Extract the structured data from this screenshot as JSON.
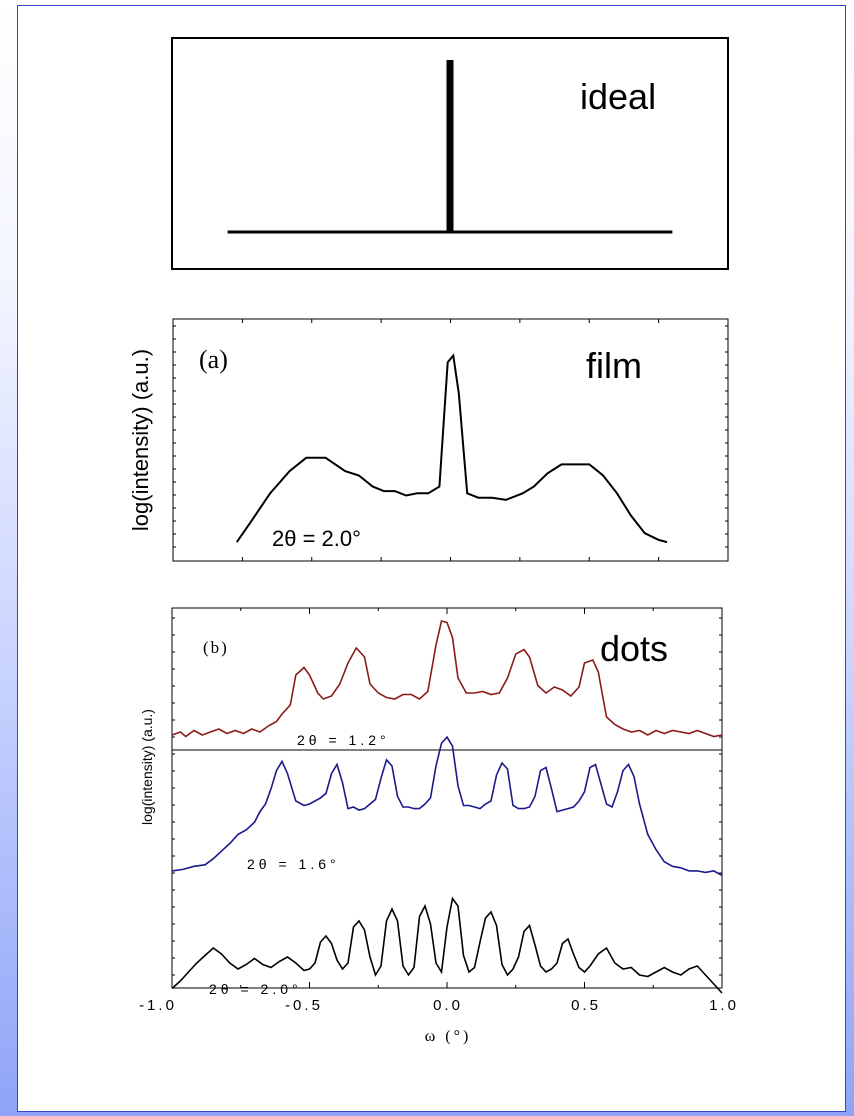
{
  "chart_data": [
    {
      "type": "line",
      "panel_label": "",
      "annotation": "ideal",
      "xlim": [
        -1.0,
        1.0
      ],
      "series": [
        {
          "name": "",
          "color": "#000000",
          "x": [
            -0.8,
            -0.015,
            -0.015,
            0.015,
            0.015,
            0.8
          ],
          "y": [
            0.0,
            0.0,
            1.0,
            1.0,
            0.0,
            0.0
          ]
        }
      ]
    },
    {
      "type": "line",
      "panel_label": "(a)",
      "annotation": "film",
      "ylabel": "log(intensity) (a.u.)",
      "xlim": [
        -1.0,
        1.0
      ],
      "ylim": [
        0,
        1
      ],
      "yscale": "log",
      "series": [
        {
          "name": "",
          "label": "2θ = 2.0°",
          "color": "#000000",
          "x": [
            -0.77,
            -0.72,
            -0.65,
            -0.58,
            -0.52,
            -0.45,
            -0.38,
            -0.33,
            -0.28,
            -0.24,
            -0.2,
            -0.16,
            -0.12,
            -0.08,
            -0.04,
            -0.01,
            0.01,
            0.03,
            0.06,
            0.1,
            0.15,
            0.2,
            0.26,
            0.3,
            0.35,
            0.4,
            0.45,
            0.5,
            0.55,
            0.6,
            0.65,
            0.7,
            0.75,
            0.78
          ],
          "y": [
            0.04,
            0.13,
            0.26,
            0.36,
            0.42,
            0.42,
            0.36,
            0.34,
            0.29,
            0.27,
            0.27,
            0.25,
            0.26,
            0.26,
            0.29,
            0.85,
            0.88,
            0.71,
            0.26,
            0.24,
            0.24,
            0.23,
            0.26,
            0.29,
            0.35,
            0.39,
            0.39,
            0.39,
            0.34,
            0.26,
            0.16,
            0.08,
            0.05,
            0.04
          ]
        }
      ]
    },
    {
      "type": "line",
      "panel_label": "(b)",
      "annotation": "dots",
      "xlabel": "ω (°)",
      "ylabel": "log(intensity) (a.u.)",
      "xlim": [
        -1.0,
        1.0
      ],
      "xticks": [
        "-1.0",
        "-0.5",
        "0.0",
        "0.5",
        "1.0"
      ],
      "yscale": "log",
      "series": [
        {
          "name": "",
          "label": "2θ = 1.2°",
          "color": "#8b1a1a",
          "x": [
            -1.0,
            -0.97,
            -0.95,
            -0.92,
            -0.89,
            -0.86,
            -0.83,
            -0.8,
            -0.77,
            -0.74,
            -0.71,
            -0.68,
            -0.65,
            -0.62,
            -0.6,
            -0.57,
            -0.55,
            -0.52,
            -0.5,
            -0.47,
            -0.45,
            -0.42,
            -0.39,
            -0.36,
            -0.33,
            -0.3,
            -0.28,
            -0.25,
            -0.22,
            -0.19,
            -0.16,
            -0.13,
            -0.1,
            -0.07,
            -0.04,
            -0.02,
            0.0,
            0.02,
            0.04,
            0.07,
            0.1,
            0.13,
            0.16,
            0.19,
            0.22,
            0.25,
            0.28,
            0.3,
            0.33,
            0.36,
            0.39,
            0.42,
            0.45,
            0.48,
            0.5,
            0.53,
            0.55,
            0.58,
            0.61,
            0.64,
            0.67,
            0.7,
            0.73,
            0.76,
            0.79,
            0.82,
            0.85,
            0.88,
            0.91,
            0.94,
            0.97,
            1.0
          ],
          "y": [
            0.22,
            0.24,
            0.21,
            0.25,
            0.22,
            0.24,
            0.26,
            0.23,
            0.25,
            0.23,
            0.26,
            0.24,
            0.28,
            0.31,
            0.36,
            0.42,
            0.62,
            0.67,
            0.62,
            0.5,
            0.46,
            0.48,
            0.56,
            0.7,
            0.8,
            0.74,
            0.56,
            0.5,
            0.47,
            0.46,
            0.49,
            0.49,
            0.46,
            0.51,
            0.82,
            0.98,
            0.97,
            0.87,
            0.6,
            0.5,
            0.5,
            0.51,
            0.49,
            0.5,
            0.6,
            0.76,
            0.79,
            0.74,
            0.55,
            0.5,
            0.54,
            0.52,
            0.48,
            0.54,
            0.7,
            0.72,
            0.64,
            0.34,
            0.29,
            0.26,
            0.24,
            0.25,
            0.22,
            0.25,
            0.23,
            0.25,
            0.24,
            0.23,
            0.25,
            0.23,
            0.21,
            0.22
          ]
        },
        {
          "name": "",
          "label": "2θ = 1.6°",
          "color": "#1a1a8b",
          "x": [
            -1.0,
            -0.96,
            -0.92,
            -0.88,
            -0.85,
            -0.82,
            -0.79,
            -0.76,
            -0.73,
            -0.7,
            -0.68,
            -0.66,
            -0.64,
            -0.62,
            -0.6,
            -0.58,
            -0.55,
            -0.52,
            -0.5,
            -0.48,
            -0.46,
            -0.44,
            -0.42,
            -0.4,
            -0.38,
            -0.36,
            -0.34,
            -0.32,
            -0.3,
            -0.28,
            -0.26,
            -0.24,
            -0.22,
            -0.2,
            -0.18,
            -0.16,
            -0.14,
            -0.12,
            -0.1,
            -0.08,
            -0.06,
            -0.04,
            -0.02,
            0.0,
            0.02,
            0.04,
            0.06,
            0.08,
            0.1,
            0.12,
            0.14,
            0.16,
            0.18,
            0.2,
            0.22,
            0.24,
            0.26,
            0.28,
            0.3,
            0.32,
            0.34,
            0.36,
            0.38,
            0.4,
            0.42,
            0.44,
            0.46,
            0.48,
            0.5,
            0.52,
            0.54,
            0.56,
            0.58,
            0.6,
            0.62,
            0.64,
            0.66,
            0.68,
            0.7,
            0.73,
            0.76,
            0.79,
            0.82,
            0.85,
            0.88,
            0.91,
            0.94,
            0.97,
            1.0
          ],
          "y": [
            0.06,
            0.07,
            0.09,
            0.1,
            0.14,
            0.19,
            0.24,
            0.3,
            0.33,
            0.38,
            0.45,
            0.5,
            0.6,
            0.72,
            0.78,
            0.7,
            0.52,
            0.49,
            0.5,
            0.52,
            0.54,
            0.57,
            0.7,
            0.76,
            0.64,
            0.47,
            0.48,
            0.46,
            0.47,
            0.5,
            0.53,
            0.67,
            0.79,
            0.75,
            0.55,
            0.48,
            0.48,
            0.47,
            0.47,
            0.5,
            0.54,
            0.75,
            0.9,
            0.94,
            0.88,
            0.62,
            0.49,
            0.49,
            0.48,
            0.47,
            0.5,
            0.52,
            0.69,
            0.77,
            0.73,
            0.49,
            0.47,
            0.47,
            0.48,
            0.55,
            0.72,
            0.74,
            0.6,
            0.45,
            0.46,
            0.47,
            0.48,
            0.52,
            0.58,
            0.74,
            0.76,
            0.63,
            0.5,
            0.48,
            0.58,
            0.72,
            0.76,
            0.68,
            0.5,
            0.3,
            0.2,
            0.12,
            0.09,
            0.08,
            0.06,
            0.06,
            0.05,
            0.06,
            0.03
          ]
        },
        {
          "name": "",
          "label": "2θ = 2.0°",
          "color": "#000000",
          "x": [
            -1.0,
            -0.97,
            -0.94,
            -0.91,
            -0.88,
            -0.85,
            -0.82,
            -0.79,
            -0.76,
            -0.73,
            -0.7,
            -0.67,
            -0.64,
            -0.61,
            -0.58,
            -0.55,
            -0.52,
            -0.5,
            -0.48,
            -0.46,
            -0.44,
            -0.42,
            -0.4,
            -0.38,
            -0.36,
            -0.34,
            -0.32,
            -0.3,
            -0.28,
            -0.26,
            -0.24,
            -0.22,
            -0.2,
            -0.18,
            -0.16,
            -0.14,
            -0.12,
            -0.1,
            -0.08,
            -0.06,
            -0.04,
            -0.02,
            0.0,
            0.02,
            0.04,
            0.06,
            0.08,
            0.1,
            0.12,
            0.14,
            0.16,
            0.18,
            0.2,
            0.22,
            0.24,
            0.26,
            0.28,
            0.3,
            0.32,
            0.34,
            0.36,
            0.38,
            0.4,
            0.42,
            0.44,
            0.46,
            0.48,
            0.5,
            0.52,
            0.55,
            0.58,
            0.61,
            0.64,
            0.67,
            0.7,
            0.73,
            0.76,
            0.79,
            0.82,
            0.85,
            0.88,
            0.91,
            0.94,
            0.97,
            1.0
          ],
          "y": [
            0.05,
            0.1,
            0.16,
            0.22,
            0.27,
            0.32,
            0.28,
            0.22,
            0.18,
            0.21,
            0.25,
            0.21,
            0.19,
            0.23,
            0.26,
            0.22,
            0.17,
            0.18,
            0.22,
            0.36,
            0.4,
            0.35,
            0.24,
            0.18,
            0.22,
            0.46,
            0.5,
            0.44,
            0.26,
            0.14,
            0.2,
            0.5,
            0.58,
            0.5,
            0.2,
            0.14,
            0.19,
            0.53,
            0.6,
            0.48,
            0.22,
            0.16,
            0.46,
            0.65,
            0.6,
            0.27,
            0.16,
            0.19,
            0.36,
            0.52,
            0.56,
            0.47,
            0.21,
            0.14,
            0.18,
            0.26,
            0.43,
            0.47,
            0.34,
            0.2,
            0.16,
            0.18,
            0.22,
            0.35,
            0.38,
            0.28,
            0.19,
            0.16,
            0.2,
            0.28,
            0.32,
            0.22,
            0.18,
            0.19,
            0.14,
            0.13,
            0.16,
            0.19,
            0.16,
            0.14,
            0.18,
            0.2,
            0.14,
            0.08,
            0.02
          ]
        }
      ]
    }
  ]
}
